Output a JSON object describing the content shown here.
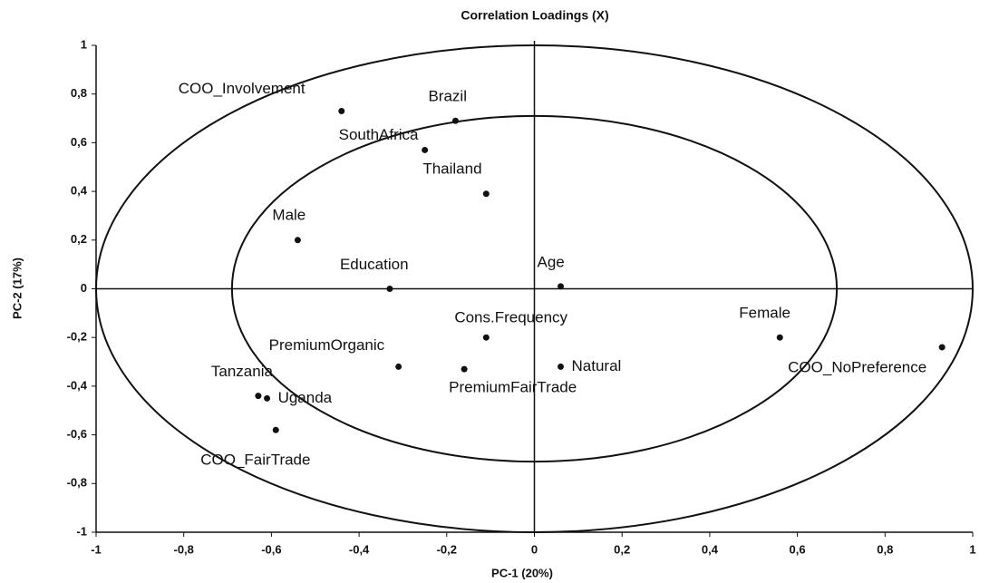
{
  "chart_data": {
    "type": "scatter",
    "title": "Correlation Loadings (X)",
    "xlabel": "PC-1 (20%)",
    "ylabel": "PC-2 (17%)",
    "labels": [
      "COO_Involvement",
      "Brazil",
      "SouthAfrica",
      "Thailand",
      "Male",
      "Education",
      "Age",
      "Cons.Frequency",
      "Female",
      "COO_NoPreference",
      "PremiumOrganic",
      "PremiumFairTrade",
      "Natural",
      "Tanzania",
      "Uganda",
      "COO_FairTrade"
    ],
    "x": [
      -0.44,
      -0.18,
      -0.25,
      -0.11,
      -0.54,
      -0.33,
      0.06,
      -0.11,
      0.56,
      0.93,
      -0.31,
      -0.16,
      0.06,
      -0.63,
      -0.61,
      -0.59
    ],
    "values": [
      0.73,
      0.69,
      0.57,
      0.39,
      0.2,
      0,
      0.01,
      -0.2,
      -0.2,
      -0.24,
      -0.32,
      -0.33,
      -0.32,
      -0.44,
      -0.45,
      -0.58
    ],
    "color": "#111111",
    "xlim": [
      -1,
      1
    ],
    "ylim": [
      -1,
      1
    ],
    "xticks": [
      -1,
      {
        "value": -0.8,
        "label": "-0,8"
      },
      {
        "value": -0.6,
        "label": "-0,6"
      },
      {
        "value": -0.4,
        "label": "-0,4"
      },
      {
        "value": -0.2,
        "label": "-0,2"
      },
      0,
      {
        "value": 0.2,
        "label": "0,2"
      },
      {
        "value": 0.4,
        "label": "0,4"
      },
      {
        "value": 0.6,
        "label": "0,6"
      },
      {
        "value": 0.8,
        "label": "0,8"
      },
      1
    ],
    "yticks": [
      -1,
      {
        "value": -0.8,
        "label": "-0,8"
      },
      {
        "value": -0.6,
        "label": "-0,6"
      },
      {
        "value": -0.4,
        "label": "-0,4"
      },
      {
        "value": -0.2,
        "label": "-0,2"
      },
      0,
      {
        "value": 0.2,
        "label": "0,2"
      },
      {
        "value": 0.4,
        "label": "0,4"
      },
      {
        "value": 0.6,
        "label": "0,6"
      },
      {
        "value": 0.8,
        "label": "0,8"
      },
      1
    ]
  }
}
